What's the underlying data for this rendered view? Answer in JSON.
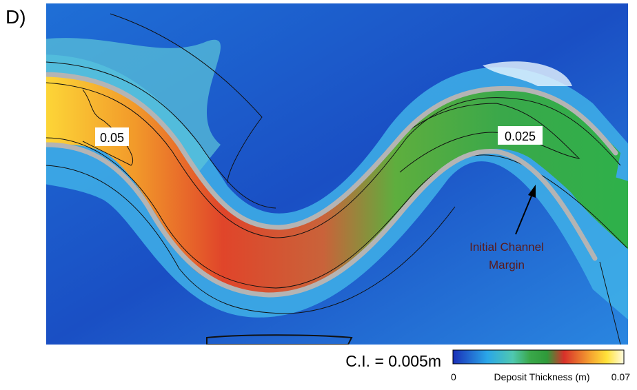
{
  "panel_label": "D)",
  "contour_labels": [
    "0.05",
    "0.025"
  ],
  "annotation": {
    "lines": [
      "Initial Channel",
      "Margin"
    ]
  },
  "contour_interval": "C.I. = 0.005m",
  "colorbar": {
    "title": "Deposit Thickness (m)",
    "min": 0,
    "max": 0.07
  }
}
